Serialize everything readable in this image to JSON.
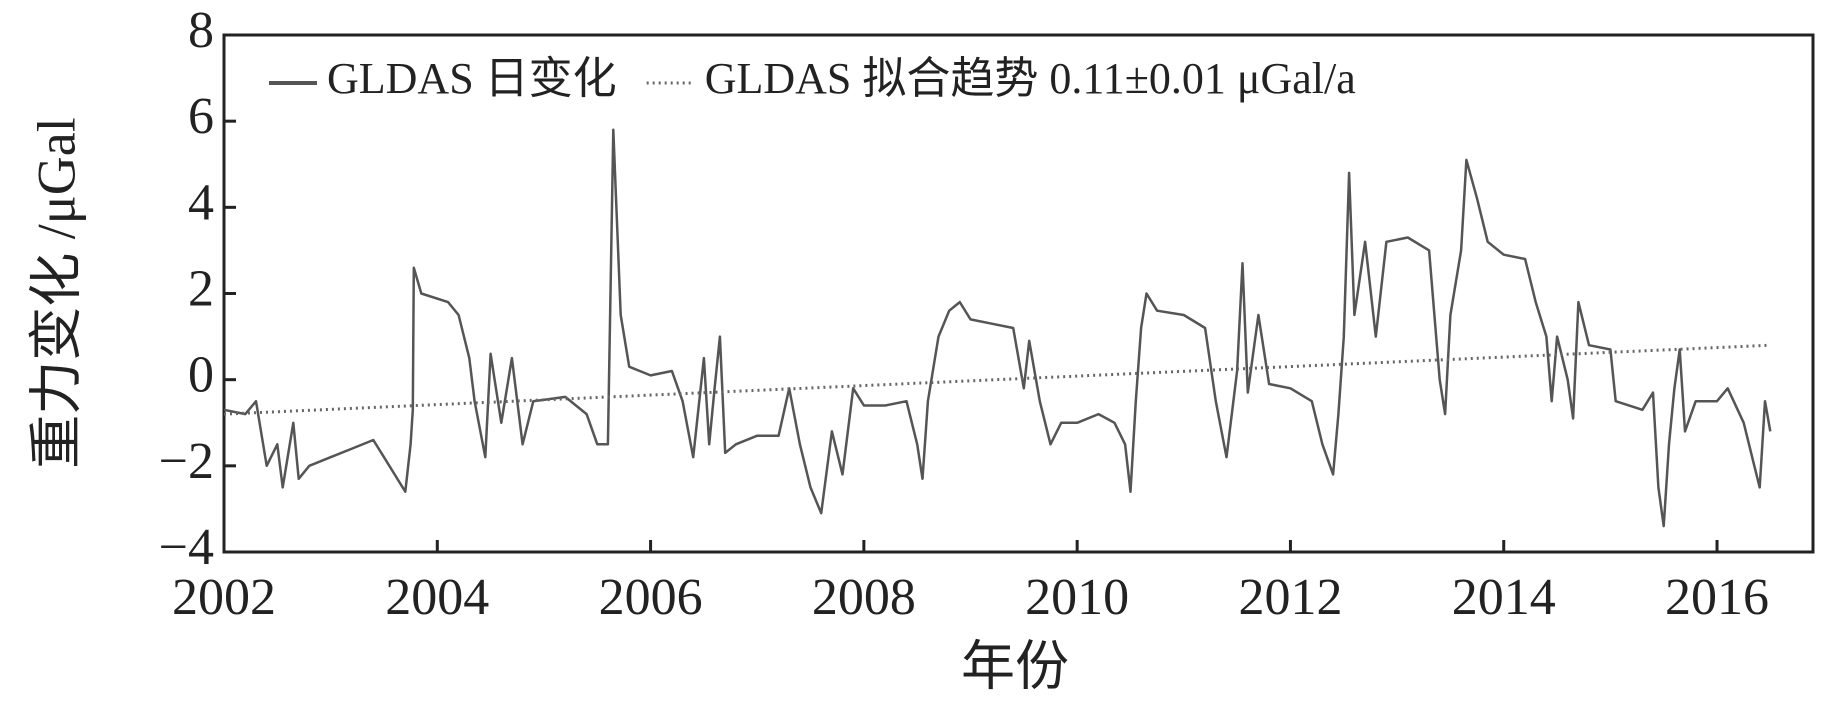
{
  "chart_data": {
    "type": "line",
    "xlabel": "年份",
    "ylabel": "重力变化 /μGal",
    "xlim": [
      2002,
      2016.9
    ],
    "ylim": [
      -4,
      8
    ],
    "xticks": [
      2002,
      2004,
      2006,
      2008,
      2010,
      2012,
      2014,
      2016
    ],
    "yticks": [
      {
        "value": -4,
        "label": "−4"
      },
      {
        "value": -2,
        "label": "−2"
      },
      0,
      2,
      4,
      6,
      8
    ],
    "legend": "upper left",
    "grid": false,
    "series": [
      {
        "name": "GLDAS 日变化",
        "color": "#555555",
        "style": "solid",
        "x": [
          2002.0,
          2002.2,
          2002.3,
          2002.4,
          2002.5,
          2002.55,
          2002.65,
          2002.7,
          2002.8,
          2003.0,
          2003.2,
          2003.4,
          2003.5,
          2003.6,
          2003.7,
          2003.75,
          2003.77,
          2003.78,
          2003.85,
          2004.1,
          2004.2,
          2004.3,
          2004.35,
          2004.45,
          2004.5,
          2004.6,
          2004.7,
          2004.8,
          2004.9,
          2005.2,
          2005.4,
          2005.5,
          2005.6,
          2005.65,
          2005.72,
          2005.8,
          2006.0,
          2006.2,
          2006.3,
          2006.4,
          2006.5,
          2006.55,
          2006.6,
          2006.65,
          2006.7,
          2006.8,
          2007.0,
          2007.2,
          2007.3,
          2007.4,
          2007.5,
          2007.6,
          2007.7,
          2007.8,
          2007.9,
          2008.0,
          2008.2,
          2008.4,
          2008.5,
          2008.55,
          2008.6,
          2008.7,
          2008.8,
          2008.9,
          2009.0,
          2009.2,
          2009.4,
          2009.5,
          2009.55,
          2009.65,
          2009.75,
          2009.85,
          2010.0,
          2010.2,
          2010.35,
          2010.45,
          2010.5,
          2010.55,
          2010.6,
          2010.65,
          2010.75,
          2011.0,
          2011.2,
          2011.3,
          2011.4,
          2011.5,
          2011.55,
          2011.6,
          2011.7,
          2011.8,
          2012.0,
          2012.2,
          2012.3,
          2012.4,
          2012.45,
          2012.5,
          2012.55,
          2012.6,
          2012.7,
          2012.8,
          2012.9,
          2013.1,
          2013.3,
          2013.4,
          2013.45,
          2013.5,
          2013.6,
          2013.65,
          2013.75,
          2013.85,
          2014.0,
          2014.2,
          2014.3,
          2014.4,
          2014.45,
          2014.5,
          2014.6,
          2014.65,
          2014.7,
          2014.8,
          2015.0,
          2015.05,
          2015.3,
          2015.4,
          2015.45,
          2015.5,
          2015.55,
          2015.6,
          2015.65,
          2015.7,
          2015.8,
          2016.0,
          2016.1,
          2016.25,
          2016.35,
          2016.4,
          2016.45,
          2016.5
        ],
        "values": [
          -0.7,
          -0.8,
          -0.5,
          -2.0,
          -1.5,
          -2.5,
          -1.0,
          -2.3,
          -2.0,
          -1.8,
          -1.6,
          -1.4,
          -1.8,
          -2.2,
          -2.6,
          -1.5,
          -0.7,
          2.6,
          2.0,
          1.8,
          1.5,
          0.5,
          -0.5,
          -1.8,
          0.6,
          -1.0,
          0.5,
          -1.5,
          -0.5,
          -0.4,
          -0.8,
          -1.5,
          -1.5,
          5.8,
          1.5,
          0.3,
          0.1,
          0.2,
          -0.5,
          -1.8,
          0.5,
          -1.5,
          -0.2,
          1.0,
          -1.7,
          -1.5,
          -1.3,
          -1.3,
          -0.2,
          -1.5,
          -2.5,
          -3.1,
          -1.2,
          -2.2,
          -0.2,
          -0.6,
          -0.6,
          -0.5,
          -1.5,
          -2.3,
          -0.5,
          1.0,
          1.6,
          1.8,
          1.4,
          1.3,
          1.2,
          -0.2,
          0.9,
          -0.5,
          -1.5,
          -1.0,
          -1.0,
          -0.8,
          -1.0,
          -1.5,
          -2.6,
          -0.5,
          1.2,
          2.0,
          1.6,
          1.5,
          1.2,
          -0.5,
          -1.8,
          0.2,
          2.7,
          -0.3,
          1.5,
          -0.1,
          -0.2,
          -0.5,
          -1.5,
          -2.2,
          -0.8,
          1.0,
          4.8,
          1.5,
          3.2,
          1.0,
          3.2,
          3.3,
          3.0,
          0.0,
          -0.8,
          1.5,
          3.0,
          5.1,
          4.2,
          3.2,
          2.9,
          2.8,
          1.8,
          1.0,
          -0.5,
          1.0,
          0.0,
          -0.9,
          1.8,
          0.8,
          0.7,
          -0.5,
          -0.7,
          -0.3,
          -2.5,
          -3.4,
          -1.5,
          -0.2,
          0.7,
          -1.2,
          -0.5,
          -0.5,
          -0.2,
          -1.0,
          -2.0,
          -2.5,
          -0.5,
          -1.2
        ]
      },
      {
        "name": "GLDAS 拟合趋势 0.11±0.01 μGal/a",
        "color": "#666666",
        "style": "dotted",
        "x": [
          2002.0,
          2016.5
        ],
        "values": [
          -0.8,
          0.8
        ]
      }
    ]
  }
}
